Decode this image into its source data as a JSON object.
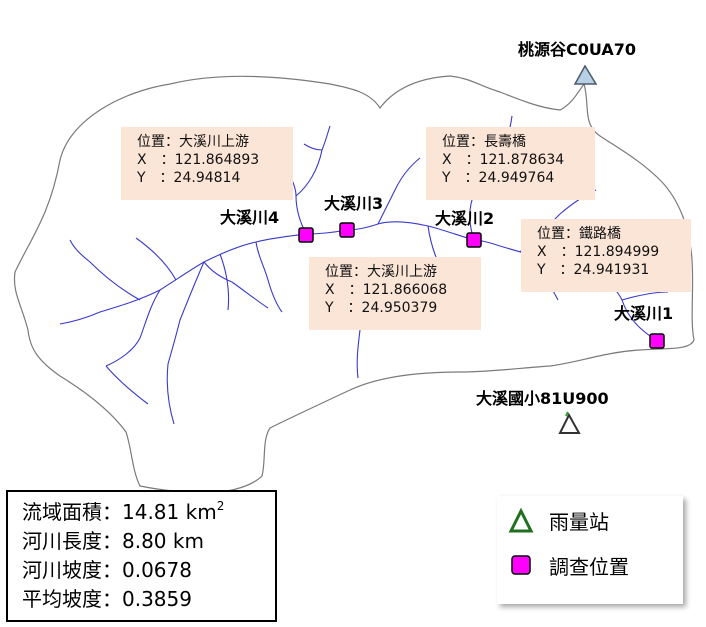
{
  "stations": {
    "north": {
      "label": "桃源谷C0UA70",
      "icon": "triangle-station-icon",
      "color": "#b8d0e6"
    },
    "south": {
      "label": "大溪國小81U900",
      "icon": "triangle-station-icon",
      "color": "#ffffff"
    }
  },
  "sites": {
    "s1": {
      "label": "大溪川1"
    },
    "s2": {
      "label": "大溪川2"
    },
    "s3": {
      "label": "大溪川3"
    },
    "s4": {
      "label": "大溪川4"
    }
  },
  "callouts": {
    "c4": {
      "location": "位置：大溪川上游",
      "x": "X　：121.864893",
      "y": "Y　：24.94814"
    },
    "c2": {
      "location": "位置：長壽橋",
      "x": "X　：121.878634",
      "y": "Y　：24.949764"
    },
    "c3": {
      "location": "位置：大溪川上游",
      "x": "X　：121.866068",
      "y": "Y　：24.950379"
    },
    "c1": {
      "location": "位置：鐵路橋",
      "x": "X　：121.894999",
      "y": "Y　：24.941931"
    }
  },
  "stats": {
    "area": "流域面積：14.81 km",
    "area_sup": "2",
    "length": "河川長度：8.80 km",
    "slope": "河川坡度：0.0678",
    "avg_slope": "平均坡度：0.3859"
  },
  "legend": {
    "rain": "雨量站",
    "survey": "調查位置"
  },
  "colors": {
    "callout_bg": "#fbe5d6",
    "survey_marker": "#ff00ff",
    "river": "#3a3acc",
    "boundary": "#777777",
    "rain_icon_stroke": "#1f6f1f"
  }
}
